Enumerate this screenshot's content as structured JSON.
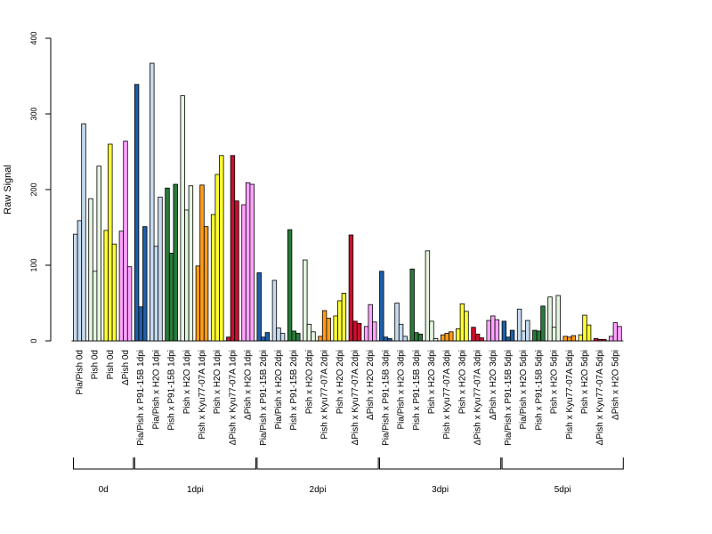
{
  "chart_data": {
    "type": "bar",
    "ylabel": "Raw Signal",
    "ylim": [
      0,
      400
    ],
    "yticks": [
      0,
      100,
      200,
      300,
      400
    ],
    "grid": false,
    "categories": [
      "Pia/Pish 0d",
      "Pish 0d",
      "Pish 0d",
      "ΔPish 0d",
      "Pia/Pish x P91-15B 1dpi",
      "Pia/Pish x H2O 1dpi",
      "Pish x P91-15B 1dpi",
      "Pish x H2O 1dpi",
      "Pish x Kyu77-07A 1dpi",
      "Pish x H2O 1dpi",
      "ΔPish x Kyu77-07A 1dpi",
      "ΔPish x H2O 1dpi",
      "Pia/Pish x P91-15B 2dpi",
      "Pia/Pish x H2O 2dpi",
      "Pish x P91-15B 2dpi",
      "Pish x H2O 2dpi",
      "Pish x Kyu77-07A 2dpi",
      "Pish x H2O 2dpi",
      "ΔPish x Kyu77-07A 2dpi",
      "ΔPish x H2O 2dpi",
      "Pia/Pish x P91-15B 3dpi",
      "Pia/Pish x H2O 3dpi",
      "Pish x P91-15B 3dpi",
      "Pish x H2O 3dpi",
      "Pish x Kyu77-07A 3dpi",
      "Pish x H2O 3dpi",
      "ΔPish x Kyu77-07A 3dpi",
      "ΔPish x H2O 3dpi",
      "Pia/Pish x P91-15B 5dpi",
      "Pia/Pish x H2O 5dpi",
      "Pish x P91-15B 5dpi",
      "Pish x H2O 5dpi",
      "Pish x Kyu77-07A 5dpi",
      "Pish x H2O 5dpi",
      "ΔPish x Kyu77-07A 5dpi",
      "ΔPish x H2O 5dpi"
    ],
    "colors": [
      "#C6DBEF",
      "#E5F5E0",
      "#FFFF33",
      "#FFA3FF",
      "#1F5FA8",
      "#C6DBEF",
      "#2A7A3B",
      "#E5F5E0",
      "#FF9B1A",
      "#FFFF33",
      "#C8102E",
      "#FFA3FF",
      "#1F5FA8",
      "#C6DBEF",
      "#2A7A3B",
      "#E5F5E0",
      "#FF9B1A",
      "#FFFF33",
      "#C8102E",
      "#FFA3FF",
      "#1F5FA8",
      "#C6DBEF",
      "#2A7A3B",
      "#E5F5E0",
      "#FF9B1A",
      "#FFFF33",
      "#C8102E",
      "#FFA3FF",
      "#1F5FA8",
      "#C6DBEF",
      "#2A7A3B",
      "#E5F5E0",
      "#FF9B1A",
      "#FFFF33",
      "#C8102E",
      "#FFA3FF"
    ],
    "values": [
      [
        141,
        159,
        287
      ],
      [
        188,
        92,
        231
      ],
      [
        146,
        260,
        128
      ],
      [
        145,
        264,
        98
      ],
      [
        339,
        45,
        151
      ],
      [
        367,
        125,
        190
      ],
      [
        202,
        116,
        207
      ],
      [
        324,
        173,
        205
      ],
      [
        99,
        206,
        151
      ],
      [
        167,
        220,
        245
      ],
      [
        5,
        245,
        185
      ],
      [
        180,
        209,
        207
      ],
      [
        90,
        5,
        11
      ],
      [
        80,
        17,
        10
      ],
      [
        147,
        13,
        10
      ],
      [
        107,
        22,
        12
      ],
      [
        6,
        40,
        30
      ],
      [
        33,
        53,
        63
      ],
      [
        140,
        26,
        23
      ],
      [
        19,
        48,
        25
      ],
      [
        92,
        5,
        3
      ],
      [
        50,
        22,
        6
      ],
      [
        95,
        11,
        9
      ],
      [
        119,
        26,
        3
      ],
      [
        8,
        10,
        12
      ],
      [
        16,
        49,
        39
      ],
      [
        18,
        9,
        4
      ],
      [
        27,
        33,
        28
      ],
      [
        26,
        5,
        14
      ],
      [
        42,
        13,
        27
      ],
      [
        14,
        13,
        46
      ],
      [
        58,
        18,
        60
      ],
      [
        6,
        5,
        7
      ],
      [
        8,
        34,
        21
      ],
      [
        3,
        2,
        2
      ],
      [
        6,
        24,
        19
      ]
    ],
    "groups": [
      {
        "label": "0d",
        "start": 0,
        "end": 3
      },
      {
        "label": "1dpi",
        "start": 4,
        "end": 11
      },
      {
        "label": "2dpi",
        "start": 12,
        "end": 19
      },
      {
        "label": "3dpi",
        "start": 20,
        "end": 27
      },
      {
        "label": "5dpi",
        "start": 28,
        "end": 35
      }
    ]
  }
}
